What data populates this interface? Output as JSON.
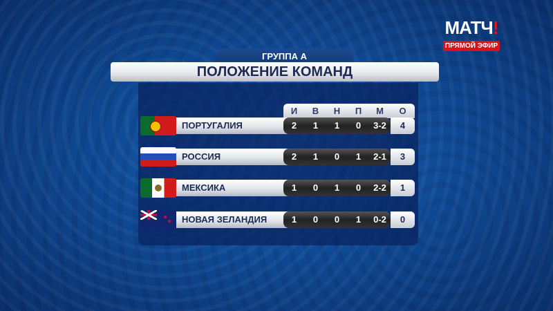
{
  "broadcaster": {
    "logo": "МАТЧ!",
    "live_label": "ПРЯМОЙ ЭФИР"
  },
  "group_label": "ГРУППА А",
  "title": "ПОЛОЖЕНИЕ КОМАНД",
  "columns": [
    "И",
    "В",
    "Н",
    "П",
    "М",
    "О"
  ],
  "teams": [
    {
      "name": "ПОРТУГАЛИЯ",
      "flag": "portugal-flag",
      "stats": [
        "2",
        "1",
        "1",
        "0",
        "3-2"
      ],
      "points": "4"
    },
    {
      "name": "РОССИЯ",
      "flag": "russia-flag",
      "stats": [
        "2",
        "1",
        "0",
        "1",
        "2-1"
      ],
      "points": "3"
    },
    {
      "name": "МЕКСИКА",
      "flag": "mexico-flag",
      "stats": [
        "1",
        "0",
        "1",
        "0",
        "2-2"
      ],
      "points": "1"
    },
    {
      "name": "НОВАЯ ЗЕЛАНДИЯ",
      "flag": "new-zealand-flag",
      "stats": [
        "1",
        "0",
        "0",
        "1",
        "0-2"
      ],
      "points": "0"
    }
  ]
}
